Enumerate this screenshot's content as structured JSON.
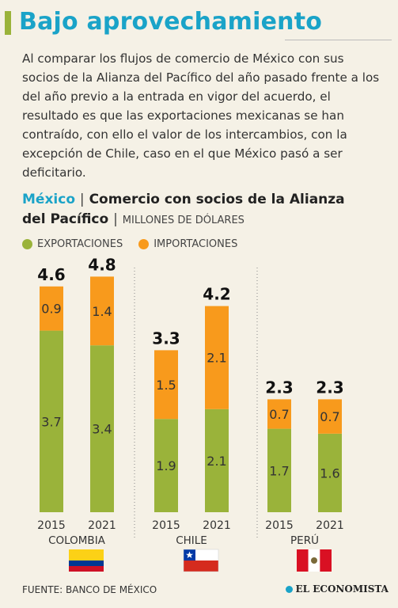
{
  "header": {
    "title": "Bajo aprovechamiento",
    "intro": "Al comparar los flujos de comercio de México con sus socios de la Alianza del Pacífico del año pasado frente a los del año previo a la entrada en vigor del acuerdo, el resultado es que las exportaciones mexicanas se han contraído, con ello el valor de los intercambios, con la excepción de Chile, caso en el que México pasó a ser deficitario."
  },
  "subtitle": {
    "country": "México",
    "sep": "|",
    "title_a": "Comercio con socios de la Alianza",
    "title_b": "del Pacífico",
    "sep2": "|",
    "units": "MILLONES DE DÓLARES"
  },
  "colors": {
    "exports": "#9ab33a",
    "imports": "#f89a1c",
    "accent": "#1aa3c8"
  },
  "chart_data": {
    "type": "bar",
    "stacked": true,
    "series": [
      {
        "name": "EXPORTACIONES"
      },
      {
        "name": "IMPORTACIONES"
      }
    ],
    "groups": [
      {
        "country": "COLOMBIA",
        "flag": "colombia-flag",
        "bars": [
          {
            "year": "2015",
            "exports": 3.7,
            "imports": 0.9,
            "total": 4.6
          },
          {
            "year": "2021",
            "exports": 3.4,
            "imports": 1.4,
            "total": 4.8
          }
        ]
      },
      {
        "country": "CHILE",
        "flag": "chile-flag",
        "bars": [
          {
            "year": "2015",
            "exports": 1.9,
            "imports": 1.5,
            "total": 3.3
          },
          {
            "year": "2021",
            "exports": 2.1,
            "imports": 2.1,
            "total": 4.2
          }
        ]
      },
      {
        "country": "PERÚ",
        "flag": "peru-flag",
        "bars": [
          {
            "year": "2015",
            "exports": 1.7,
            "imports": 0.7,
            "total": 2.3
          },
          {
            "year": "2021",
            "exports": 1.6,
            "imports": 0.7,
            "total": 2.3
          }
        ]
      }
    ],
    "ylim": [
      0,
      5.5
    ]
  },
  "footer": {
    "source": "FUENTE: BANCO DE MÉXICO",
    "brand": "EL ECONOMISTA"
  }
}
